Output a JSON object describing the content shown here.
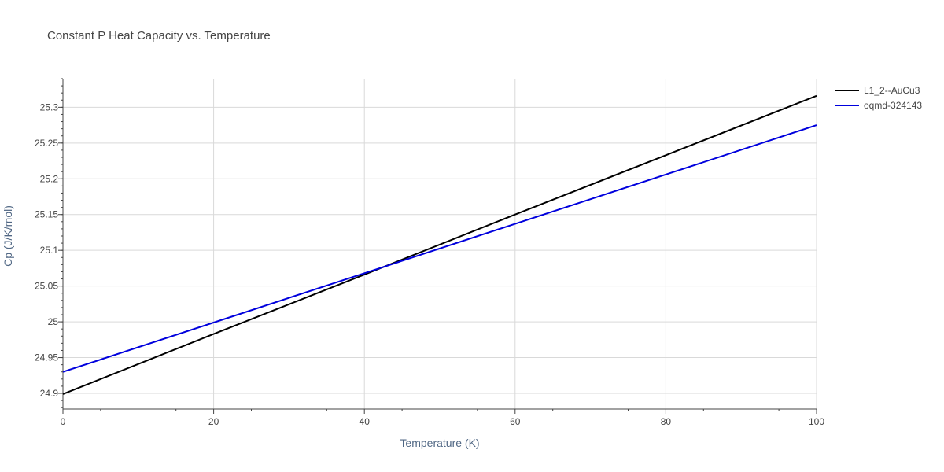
{
  "chart_data": {
    "type": "line",
    "title": "Constant P Heat Capacity vs. Temperature",
    "xlabel": "Temperature (K)",
    "ylabel": "Cp (J/K/mol)",
    "xlim": [
      0,
      100
    ],
    "ylim": [
      24.878,
      25.34
    ],
    "x_ticks": [
      0,
      20,
      40,
      60,
      80,
      100
    ],
    "y_ticks": [
      24.9,
      24.95,
      25,
      25.05,
      25.1,
      25.15,
      25.2,
      25.25,
      25.3
    ],
    "x_tick_labels": [
      "0",
      "20",
      "40",
      "60",
      "80",
      "100"
    ],
    "y_tick_labels": [
      "24.9",
      "24.95",
      "25",
      "25.05",
      "25.1",
      "25.15",
      "25.2",
      "25.25",
      "25.3"
    ],
    "grid": true,
    "legend_position": "top-right-outside",
    "series": [
      {
        "name": "L1_2--AuCu3",
        "color": "#000000",
        "x": [
          0,
          20,
          40,
          60,
          80,
          100
        ],
        "y": [
          24.899,
          24.983,
          25.066,
          25.15,
          25.233,
          25.316
        ]
      },
      {
        "name": "oqmd-324143",
        "color": "#0000dd",
        "x": [
          0,
          20,
          40,
          60,
          80,
          100
        ],
        "y": [
          24.93,
          24.999,
          25.068,
          25.137,
          25.206,
          25.275
        ]
      }
    ]
  }
}
